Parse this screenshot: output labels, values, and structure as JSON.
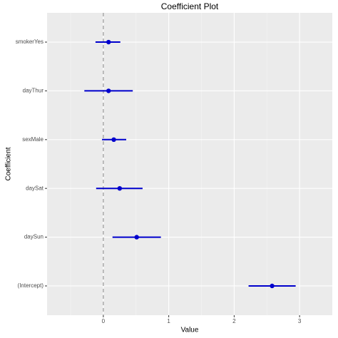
{
  "chart_data": {
    "type": "errorbar",
    "title": "Coefficient Plot",
    "x_label": "Value",
    "y_label": "Coefficient",
    "categories": [
      "smokerYes",
      "dayThur",
      "sexMale",
      "daySat",
      "daySun",
      "(Intercept)"
    ],
    "series": [
      {
        "color": "#0000cd",
        "values": [
          0.08,
          0.08,
          0.16,
          0.25,
          0.51,
          2.58
        ],
        "lower": [
          -0.12,
          -0.29,
          -0.02,
          -0.11,
          0.14,
          2.22
        ],
        "upper": [
          0.26,
          0.45,
          0.35,
          0.6,
          0.88,
          2.94
        ]
      }
    ],
    "xlim": [
      -0.86,
      3.5
    ],
    "xticks": [
      0,
      1,
      2,
      3
    ],
    "minor_xticks": [
      -0.5,
      0.5,
      1.5,
      2.5
    ],
    "vline": 0,
    "grid": true
  }
}
